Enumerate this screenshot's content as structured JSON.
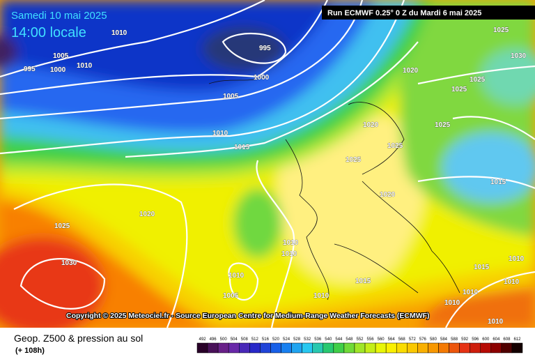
{
  "header": {
    "date": "Samedi 10 mai 2025",
    "time": "14:00 locale",
    "run": "Run ECMWF 0.25° 0 Z du Mardi 6 mai 2025"
  },
  "copyright": "Copyright © 2025 Meteociel.fr - Source European Centre for Medium-Range Weather Forecasts (ECMWF)",
  "footer": {
    "title": "Geop. Z500 & pression au sol",
    "step": "(+ 108h)"
  },
  "scale": {
    "labels": [
      492,
      496,
      500,
      504,
      508,
      512,
      516,
      520,
      524,
      528,
      532,
      536,
      540,
      544,
      548,
      552,
      556,
      560,
      564,
      568,
      572,
      576,
      580,
      584,
      588,
      592,
      596,
      600,
      604,
      608,
      612
    ]
  },
  "isobar_labels": [
    1010,
    1005,
    995,
    1000,
    1010,
    995,
    1000,
    1005,
    1010,
    1015,
    1020,
    1025,
    1030,
    1025,
    1025,
    1020,
    1025,
    1025,
    1025,
    1020,
    1015,
    1020,
    1025,
    1030,
    1010,
    1010,
    1010,
    1005,
    1015,
    1010,
    1010,
    1010,
    1010,
    1010,
    1015,
    1010
  ]
}
